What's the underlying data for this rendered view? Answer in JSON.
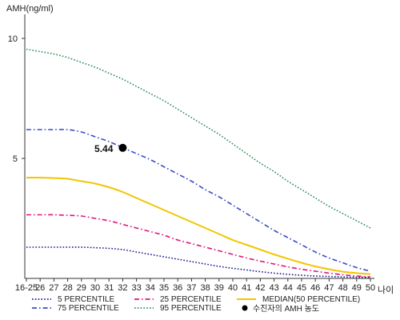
{
  "chart_data": {
    "type": "line",
    "title": "",
    "ylabel": "AMH(ng/ml)",
    "xlabel": "나이",
    "x_ticks": [
      "16-25",
      "26",
      "27",
      "28",
      "29",
      "30",
      "31",
      "32",
      "33",
      "34",
      "35",
      "36",
      "37",
      "38",
      "39",
      "40",
      "41",
      "42",
      "43",
      "44",
      "45",
      "46",
      "47",
      "48",
      "49",
      "50"
    ],
    "y_ticks": [
      5,
      10
    ],
    "ylim": [
      0,
      11
    ],
    "grid": false,
    "legend_position": "bottom",
    "series": [
      {
        "name": "5 PERCENTILE",
        "color": "#1a1a8c",
        "style": "dotted",
        "values": [
          1.3,
          1.3,
          1.3,
          1.3,
          1.3,
          1.28,
          1.25,
          1.2,
          1.1,
          1.0,
          0.9,
          0.8,
          0.7,
          0.6,
          0.5,
          0.42,
          0.35,
          0.28,
          0.22,
          0.17,
          0.13,
          0.1,
          0.08,
          0.06,
          0.05,
          0.04
        ]
      },
      {
        "name": "25 PERCENTILE",
        "color": "#e0127a",
        "style": "dashdot",
        "values": [
          2.65,
          2.65,
          2.65,
          2.63,
          2.6,
          2.5,
          2.4,
          2.25,
          2.1,
          1.95,
          1.8,
          1.6,
          1.45,
          1.3,
          1.15,
          1.0,
          0.85,
          0.72,
          0.6,
          0.48,
          0.38,
          0.3,
          0.22,
          0.15,
          0.1,
          0.06
        ]
      },
      {
        "name": "MEDIAN(50 PERCENTILE)",
        "color": "#f2c500",
        "style": "solid",
        "values": [
          4.2,
          4.2,
          4.18,
          4.15,
          4.05,
          3.95,
          3.8,
          3.6,
          3.35,
          3.1,
          2.85,
          2.6,
          2.35,
          2.1,
          1.85,
          1.6,
          1.4,
          1.2,
          1.0,
          0.82,
          0.65,
          0.5,
          0.38,
          0.28,
          0.22,
          0.18
        ]
      },
      {
        "name": "75 PERCENTILE",
        "color": "#3a4cc7",
        "style": "dashdot",
        "values": [
          6.2,
          6.2,
          6.2,
          6.2,
          6.1,
          5.9,
          5.7,
          5.45,
          5.2,
          4.95,
          4.65,
          4.35,
          4.05,
          3.7,
          3.4,
          3.05,
          2.7,
          2.35,
          2.0,
          1.7,
          1.4,
          1.1,
          0.85,
          0.65,
          0.45,
          0.3
        ]
      },
      {
        "name": "95 PERCENTILE",
        "color": "#2e8b57",
        "style": "dotted",
        "values": [
          9.55,
          9.45,
          9.35,
          9.2,
          9.0,
          8.8,
          8.55,
          8.3,
          8.0,
          7.7,
          7.4,
          7.05,
          6.7,
          6.35,
          6.0,
          5.6,
          5.2,
          4.8,
          4.45,
          4.05,
          3.7,
          3.35,
          3.0,
          2.7,
          2.4,
          2.1
        ]
      }
    ],
    "marker": {
      "name": "수진자의 AMH 농도",
      "x": "32",
      "y": 5.44,
      "label": "5.44",
      "color": "#000000"
    }
  }
}
